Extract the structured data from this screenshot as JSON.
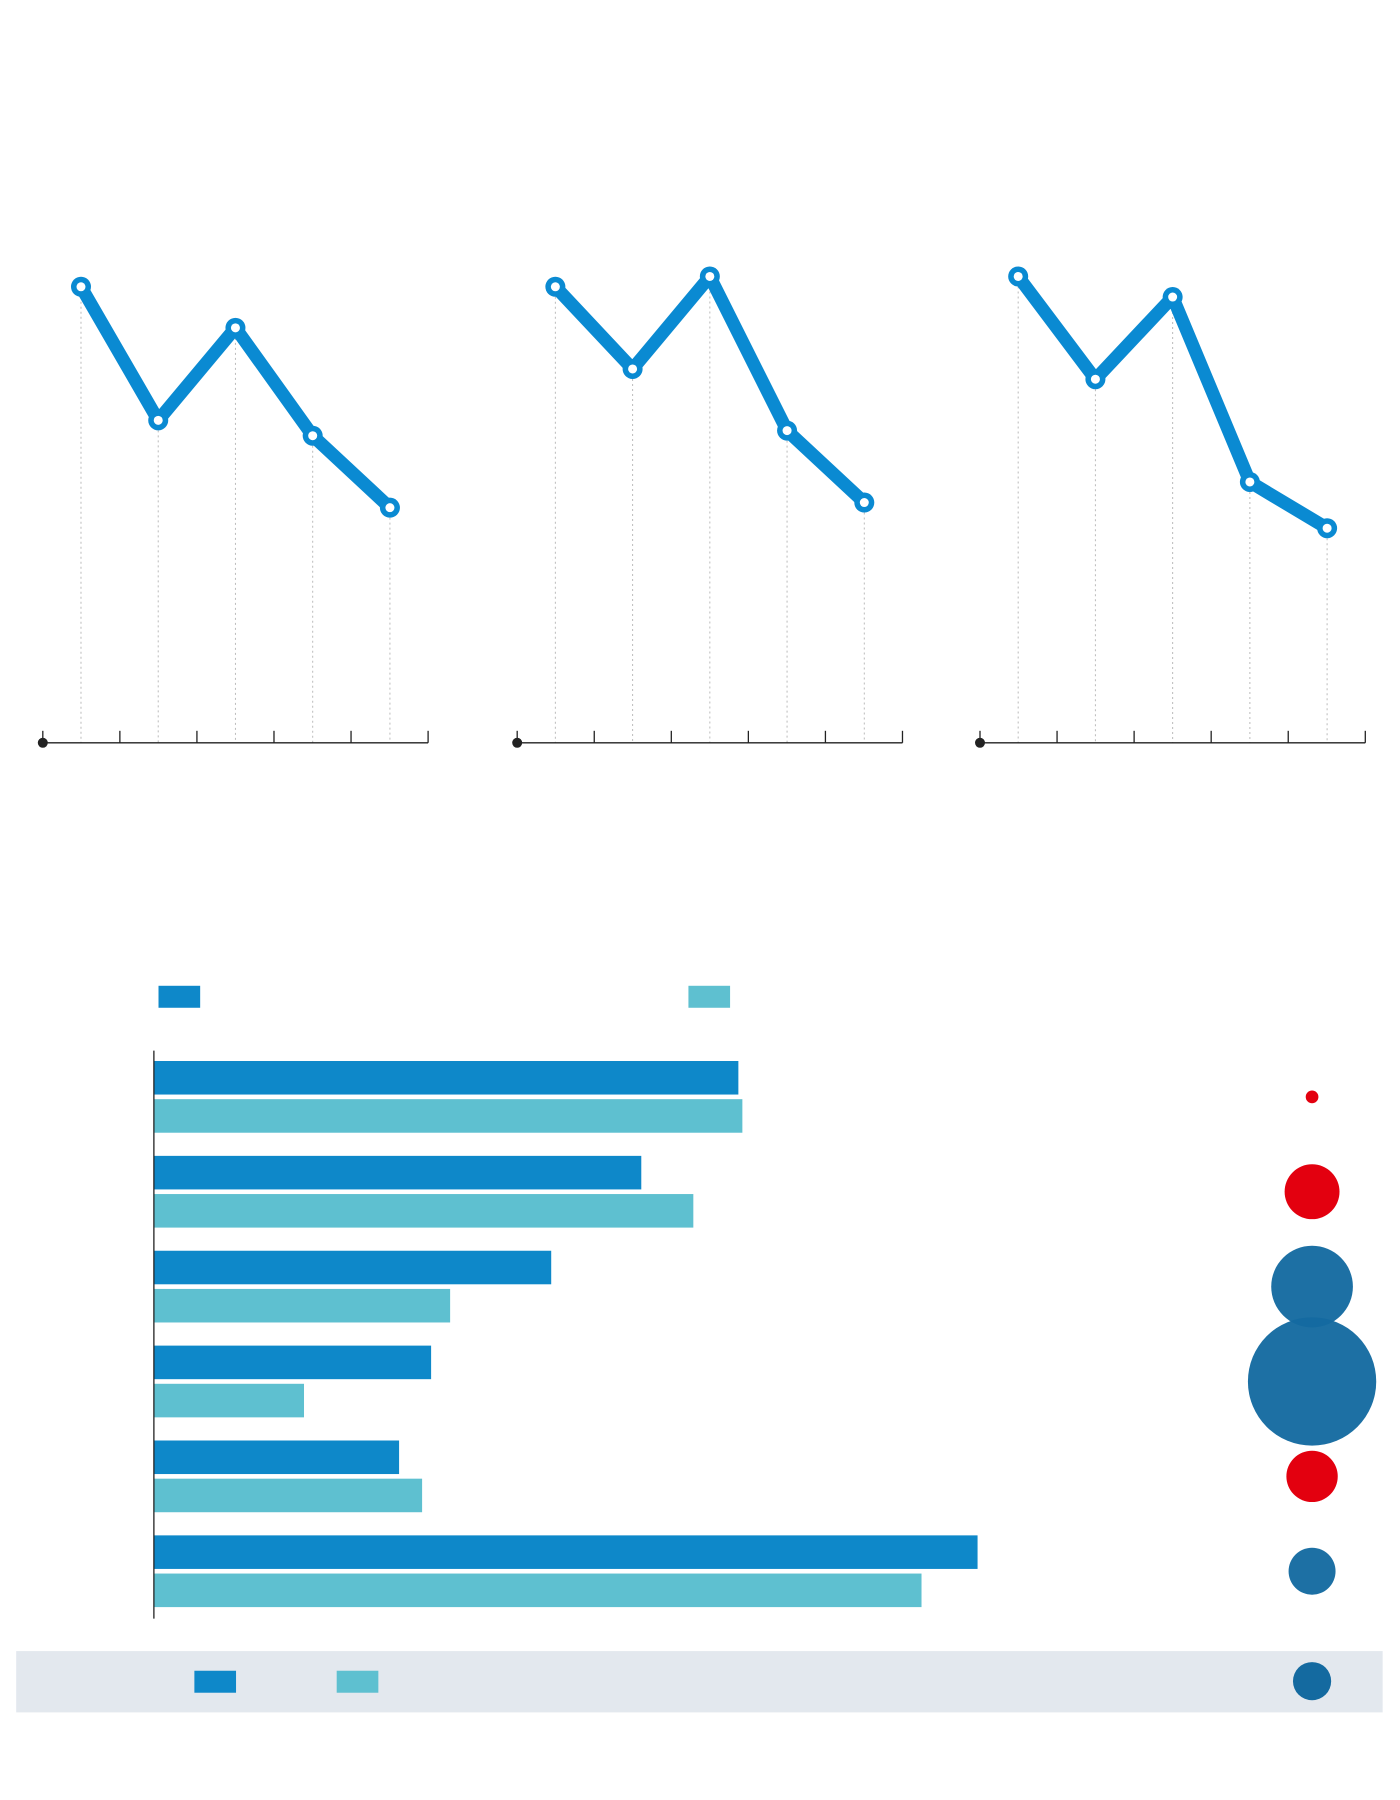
{
  "colors": {
    "line": "#0a8ad2",
    "bar_primary": "#0e88c9",
    "bar_secondary": "#5ec0d0",
    "bubble_red": "#e3000f",
    "bubble_blue": "#146aa0",
    "axis": "#222222",
    "gridline": "#bbbbbb",
    "footer_band": "#e3e8ee"
  },
  "chart_data": [
    {
      "type": "line",
      "x": [
        1,
        2,
        3,
        4,
        5
      ],
      "values": [
        89,
        63,
        81,
        60,
        46
      ],
      "ylim": [
        0,
        100
      ],
      "grid": "vertical-dotted"
    },
    {
      "type": "line",
      "x": [
        1,
        2,
        3,
        4,
        5
      ],
      "values": [
        89,
        73,
        91,
        61,
        47
      ],
      "ylim": [
        0,
        100
      ],
      "grid": "vertical-dotted"
    },
    {
      "type": "line",
      "x": [
        1,
        2,
        3,
        4,
        5
      ],
      "values": [
        91,
        71,
        87,
        51,
        42
      ],
      "ylim": [
        0,
        100
      ],
      "grid": "vertical-dotted"
    },
    {
      "type": "bar",
      "orientation": "horizontal",
      "legend": "top",
      "categories": [
        "",
        "",
        "",
        "",
        "",
        ""
      ],
      "series": [
        {
          "values": [
            584,
            487,
            397,
            277,
            245,
            823
          ]
        },
        {
          "values": [
            588,
            539,
            296,
            150,
            268,
            767
          ]
        }
      ],
      "xlim": [
        0,
        1000
      ]
    },
    {
      "type": "scatter",
      "encoding": "bubble-size",
      "values": [
        3,
        56,
        124,
        306,
        49,
        41
      ],
      "categories": [
        "red",
        "red",
        "blue",
        "blue",
        "red",
        "blue"
      ]
    }
  ]
}
